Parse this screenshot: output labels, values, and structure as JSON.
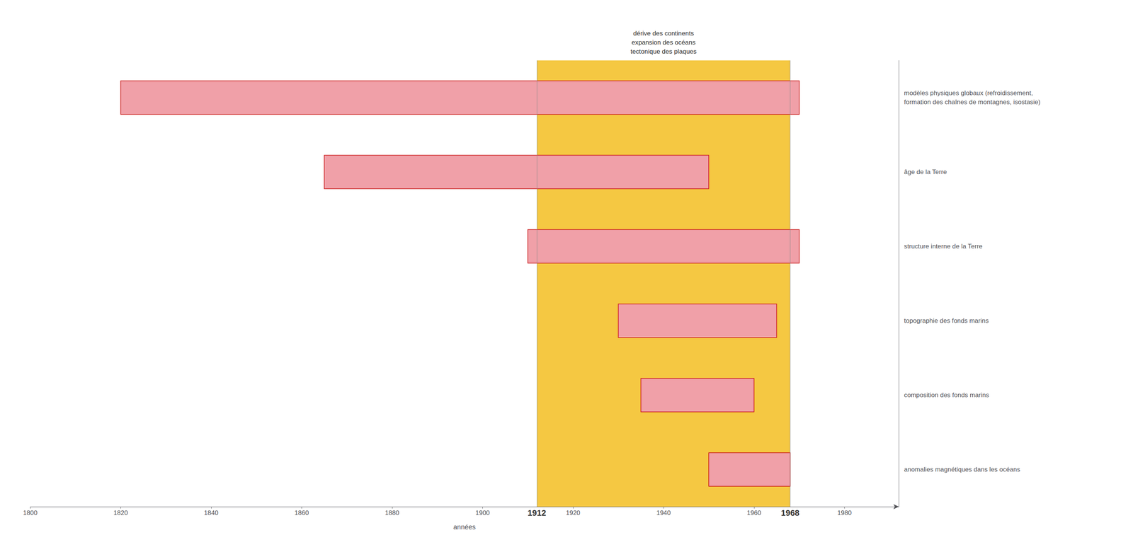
{
  "chart_data": {
    "type": "bar",
    "orientation": "horizontal",
    "xlabel": "années",
    "categories": [
      "modèles physiques globaux (refroidissement,\nformation des chaînes de montagnes, isostasie)",
      "âge de la Terre",
      "structure interne de la Terre",
      "topographie des fonds marins",
      "composition des fonds marins",
      "anomalies magnétiques dans les océans"
    ],
    "values": [
      [
        1820,
        1970
      ],
      [
        1865,
        1950
      ],
      [
        1910,
        1970
      ],
      [
        1930,
        1965
      ],
      [
        1935,
        1960
      ],
      [
        1950,
        1968
      ]
    ],
    "color": "#f0a0a8",
    "xlim": [
      1800,
      1992
    ],
    "xticks": [
      1800,
      1820,
      1840,
      1860,
      1880,
      1900,
      1920,
      1940,
      1960,
      1980
    ],
    "grid": false,
    "annotations": [
      {
        "x0": 1912,
        "x1": 1968,
        "color": "#f5c842",
        "text": [
          "dérive des continents",
          "expansion des océans",
          "tectonique des plaques"
        ]
      }
    ]
  }
}
